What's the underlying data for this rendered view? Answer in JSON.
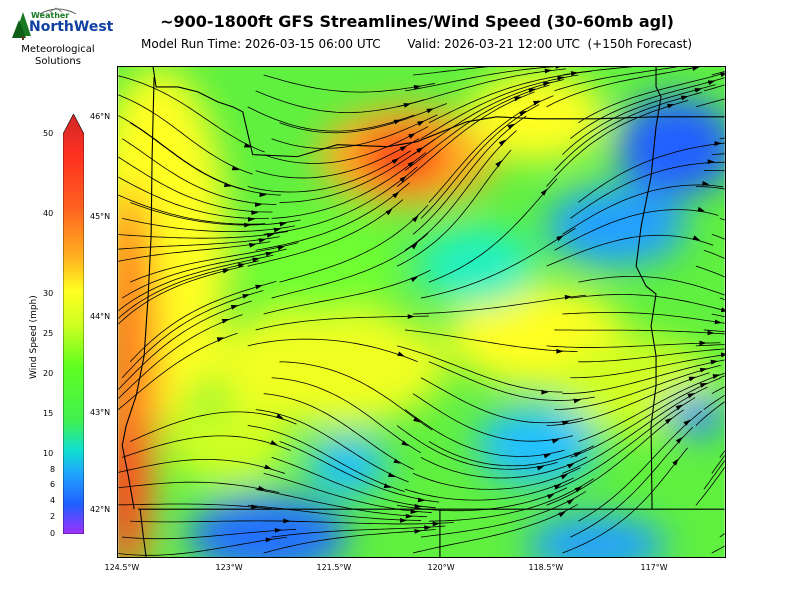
{
  "title": "~900-1800ft GFS Streamlines/Wind Speed (30-60mb agl)",
  "subtitle": {
    "model_run": "Model Run Time: 2026-03-15 06:00 UTC",
    "valid": "Valid: 2026-03-21 12:00 UTC  (+150h Forecast)"
  },
  "logo": {
    "word_weather": "Weather",
    "word_brand": "NorthWest",
    "caption_line1": "Meteorological",
    "caption_line2": "Solutions"
  },
  "colorbar": {
    "label": "Wind Speed (mph)",
    "ticks": [
      "0",
      "2",
      "4",
      "6",
      "8",
      "10",
      "15",
      "20",
      "25",
      "30",
      "40",
      "50"
    ],
    "colors": [
      "#b040ff",
      "#2080ff",
      "#20a0ff",
      "#10d0e0",
      "#20e0b0",
      "#30f060",
      "#50ff20",
      "#b0ff20",
      "#ffff20",
      "#ffc020",
      "#ff8020",
      "#ff3020",
      "#d02020"
    ]
  },
  "map": {
    "lat_labels": [
      "46°N",
      "45°N",
      "44°N",
      "43°N",
      "42°N"
    ],
    "lon_labels": [
      "124.5°W",
      "123°W",
      "121.5°W",
      "120°W",
      "118.5°W",
      "117°W"
    ],
    "blobs": [
      {
        "color": "#ff6a20",
        "name": "high-wind-northcentral"
      },
      {
        "color": "#ff3a1a",
        "name": "core-high-wind"
      },
      {
        "color": "#ff8020",
        "name": "coast-high-wind"
      },
      {
        "color": "#2060ff",
        "name": "low-wind-northeast"
      },
      {
        "color": "#20a0ff",
        "name": "low-wind-southwest"
      },
      {
        "color": "#20a0ff",
        "name": "low-wind-southcentral"
      },
      {
        "color": "#20c0ff",
        "name": "low-wind-southeast"
      }
    ]
  }
}
